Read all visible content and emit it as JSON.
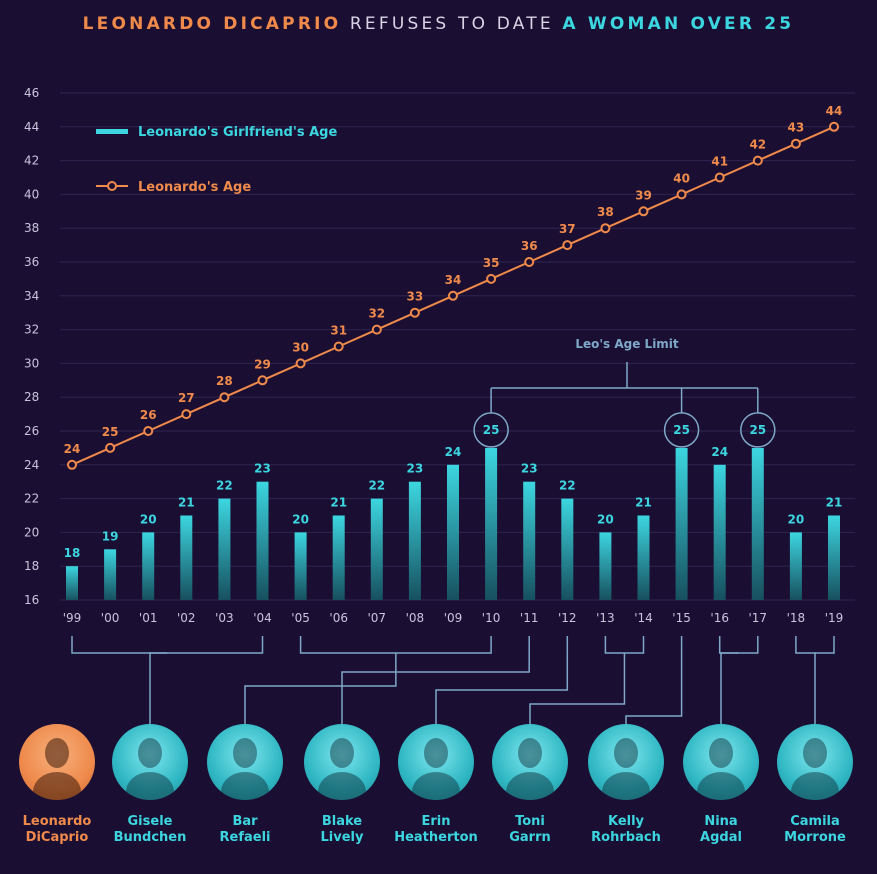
{
  "title": {
    "part1": "LEONARDO DICAPRIO",
    "part2": " REFUSES TO DATE ",
    "part3": "A WOMAN OVER 25"
  },
  "colors": {
    "background": "#1a0f33",
    "leo": "#f08a4b",
    "girlfriend": "#3cd6e0",
    "grid": "#2e2450",
    "axis_text": "#c9c3dc",
    "bracket": "#7fa8c8"
  },
  "chart_data": {
    "type": "bar",
    "categories": [
      "'99",
      "'00",
      "'01",
      "'02",
      "'03",
      "'04",
      "'05",
      "'06",
      "'07",
      "'08",
      "'09",
      "'10",
      "'11",
      "'12",
      "'13",
      "'14",
      "'15",
      "'16",
      "'17",
      "'18",
      "'19"
    ],
    "series": [
      {
        "name": "Leonardo's Girlfriend's Age",
        "type": "bar",
        "values": [
          18,
          19,
          20,
          21,
          22,
          23,
          20,
          21,
          22,
          23,
          24,
          25,
          23,
          22,
          20,
          21,
          25,
          24,
          25,
          20,
          21
        ]
      },
      {
        "name": "Leonardo's Age",
        "type": "line",
        "values": [
          24,
          25,
          26,
          27,
          28,
          29,
          30,
          31,
          32,
          33,
          34,
          35,
          36,
          37,
          38,
          39,
          40,
          41,
          42,
          43,
          44
        ]
      }
    ],
    "ylim": [
      16,
      46
    ],
    "yticks": [
      16,
      18,
      20,
      22,
      24,
      26,
      28,
      30,
      32,
      34,
      36,
      38,
      40,
      42,
      44,
      46
    ],
    "grid": true,
    "legend_placement": "top-left",
    "annotation": {
      "label": "Leo's Age Limit",
      "highlight_indices": [
        11,
        16,
        18
      ]
    },
    "groups": [
      {
        "start": 0,
        "end": 5
      },
      {
        "start": 6,
        "end": 11
      },
      {
        "start": 12,
        "end": 12
      },
      {
        "start": 13,
        "end": 13
      },
      {
        "start": 14,
        "end": 15
      },
      {
        "start": 16,
        "end": 16
      },
      {
        "start": 17,
        "end": 18
      },
      {
        "start": 19,
        "end": 20
      }
    ]
  },
  "people": [
    {
      "first": "Leonardo",
      "last": "DiCaprio",
      "is_leo": true
    },
    {
      "first": "Gisele",
      "last": "Bundchen"
    },
    {
      "first": "Bar",
      "last": "Refaeli"
    },
    {
      "first": "Blake",
      "last": "Lively"
    },
    {
      "first": "Erin",
      "last": "Heatherton"
    },
    {
      "first": "Toni",
      "last": "Garrn"
    },
    {
      "first": "Kelly",
      "last": "Rohrbach"
    },
    {
      "first": "Nina",
      "last": "Agdal"
    },
    {
      "first": "Camila",
      "last": "Morrone"
    }
  ]
}
